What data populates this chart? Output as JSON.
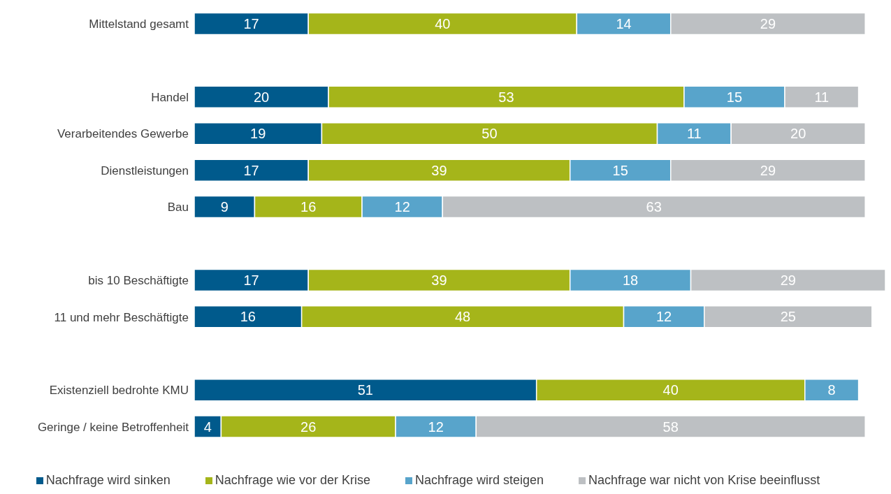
{
  "chart_data": {
    "type": "bar",
    "orientation": "horizontal",
    "stacked": true,
    "data_labels": true,
    "legend": "bottom",
    "grid": false,
    "tick_labels": "y",
    "xlim": [
      0,
      103
    ],
    "categories": [
      "Mittelstand gesamt",
      null,
      "Handel",
      "Verarbeitendes Gewerbe",
      "Dienstleistungen",
      "Bau",
      null,
      "bis 10 Beschäftigte",
      "11 und mehr Beschäftigte",
      null,
      "Existenziell bedrohte KMU",
      "Geringe / keine Betroffenheit"
    ],
    "series": [
      {
        "name": "Nachfrage wird sinken",
        "color": "#005a8c",
        "values": [
          17,
          null,
          20,
          19,
          17,
          9,
          null,
          17,
          16,
          null,
          51,
          4
        ]
      },
      {
        "name": "Nachfrage wie vor der Krise",
        "color": "#a5b51a",
        "values": [
          40,
          null,
          53,
          50,
          39,
          16,
          null,
          39,
          48,
          null,
          40,
          26
        ]
      },
      {
        "name": "Nachfrage wird steigen",
        "color": "#58a4cb",
        "values": [
          14,
          null,
          15,
          11,
          15,
          12,
          null,
          18,
          12,
          null,
          8,
          12
        ]
      },
      {
        "name": "Nachfrage war nicht von Krise beeinflusst",
        "color": "#bdc0c3",
        "values": [
          29,
          null,
          11,
          20,
          29,
          63,
          null,
          29,
          25,
          null,
          null,
          58
        ]
      }
    ]
  }
}
